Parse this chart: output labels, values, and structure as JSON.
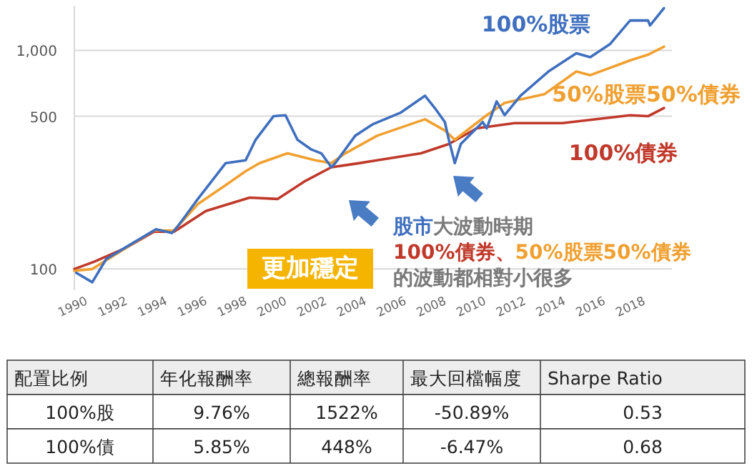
{
  "chart_data": [
    {
      "type": "line",
      "log": "y",
      "grid": "y",
      "marker": "none",
      "line_style": "solid",
      "xlim": [
        1990,
        2020
      ],
      "xticks": [
        1990,
        1992,
        1994,
        1996,
        1998,
        2000,
        2002,
        2004,
        2006,
        2008,
        2010,
        2012,
        2014,
        2016,
        2018
      ],
      "ylim": [
        80,
        1600
      ],
      "yticks": [
        {
          "value": 100,
          "label": "100"
        },
        {
          "value": 500,
          "label": "500"
        },
        {
          "value": 1000,
          "label": "1,000"
        }
      ],
      "annotations": [
        "更加穩定",
        "股市",
        "大波動時期",
        "100%債券、",
        "50%股票50%債券",
        "的波動都相對小很多"
      ],
      "series": [
        {
          "name": "100%債券",
          "color": "#c0392b",
          "x": [
            1990,
            1991,
            1992.6,
            1994,
            1995,
            1996.6,
            1998.8,
            2000.2,
            2001.6,
            2002.9,
            2003.8,
            2005.2,
            2007.4,
            2008.8,
            2010.2,
            2012.1,
            2014.5,
            2017.9,
            2018.8,
            2019.6
          ],
          "values": [
            100,
            108,
            125,
            148,
            148,
            184,
            212,
            209,
            253,
            292,
            300,
            314,
            338,
            373,
            440,
            465,
            465,
            505,
            500,
            545
          ]
        },
        {
          "name": "50%股票50%債券",
          "color": "#f0a030",
          "x": [
            1990,
            1990.9,
            1992.6,
            1994,
            1995,
            1996.2,
            1997.6,
            1998.6,
            1999.3,
            2000.7,
            2002.1,
            2002.9,
            2003.6,
            2005.2,
            2007.6,
            2008.6,
            2009.1,
            2010.7,
            2011.6,
            2013.6,
            2015.2,
            2015.9,
            2017.9,
            2018.8,
            2019.6
          ],
          "values": [
            98,
            100,
            125,
            150,
            150,
            198,
            242,
            280,
            305,
            338,
            314,
            305,
            338,
            407,
            484,
            430,
            390,
            505,
            575,
            630,
            800,
            770,
            900,
            955,
            1040
          ]
        },
        {
          "name": "100%股票",
          "color": "#3f6fbf",
          "x": [
            1990.1,
            1990.9,
            1991.6,
            1992.6,
            1994.1,
            1994.9,
            1995.2,
            1996.2,
            1997.6,
            1998.6,
            1999.1,
            2000,
            2000.6,
            2001.2,
            2001.9,
            2002.4,
            2002.9,
            2003.1,
            2004.1,
            2005,
            2006.4,
            2007.6,
            2008.1,
            2008.6,
            2008.8,
            2009.1,
            2009.4,
            2010.5,
            2010.7,
            2011.2,
            2011.6,
            2012.4,
            2013.8,
            2015.2,
            2015.9,
            2016.9,
            2017.9,
            2018.8,
            2018.9,
            2019.6
          ],
          "values": [
            96,
            87,
            111,
            126,
            152,
            146,
            157,
            209,
            305,
            314,
            390,
            500,
            505,
            390,
            352,
            338,
            292,
            305,
            407,
            460,
            520,
            620,
            544,
            470,
            390,
            305,
            373,
            470,
            440,
            584,
            505,
            620,
            800,
            970,
            930,
            1070,
            1370,
            1370,
            1300,
            1560
          ]
        }
      ]
    },
    {
      "type": "other",
      "annotations": [
        "配置比例",
        "年化報酬率",
        "總報酬率",
        "最大回檔幅度",
        "Sharpe Ratio",
        "100%股",
        "9.76%",
        "1522%",
        "-50.89%",
        "0.53",
        "100%債",
        "5.85%",
        "448%",
        "-6.47%",
        "0.68"
      ]
    }
  ]
}
